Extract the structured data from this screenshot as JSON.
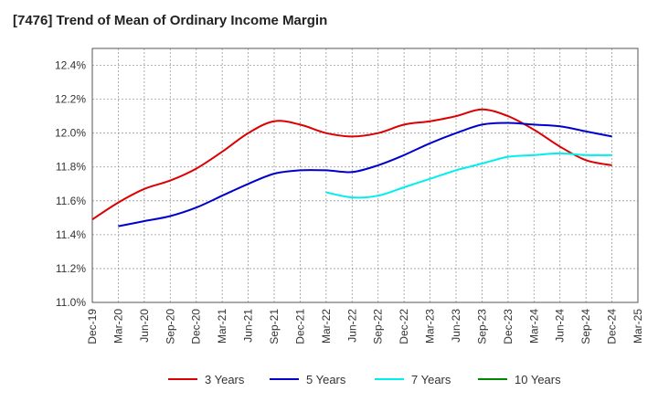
{
  "title": "[7476]  Trend of Mean of Ordinary Income Margin",
  "chart_data": {
    "type": "line",
    "title": "[7476]  Trend of Mean of Ordinary Income Margin",
    "xlabel": "",
    "ylabel": "",
    "x": [
      "Dec-19",
      "Mar-20",
      "Jun-20",
      "Sep-20",
      "Dec-20",
      "Mar-21",
      "Jun-21",
      "Sep-21",
      "Dec-21",
      "Mar-22",
      "Jun-22",
      "Sep-22",
      "Dec-22",
      "Mar-23",
      "Jun-23",
      "Sep-23",
      "Dec-23",
      "Mar-24",
      "Jun-24",
      "Sep-24",
      "Dec-24",
      "Mar-25"
    ],
    "ylim": [
      11.0,
      12.5
    ],
    "yticks": [
      11.0,
      11.2,
      11.4,
      11.6,
      11.8,
      12.0,
      12.2,
      12.4
    ],
    "ytick_labels": [
      "11.0%",
      "11.2%",
      "11.4%",
      "11.6%",
      "11.8%",
      "12.0%",
      "12.2%",
      "12.4%"
    ],
    "grid": true,
    "legend_position": "bottom",
    "series": [
      {
        "name": "3 Years",
        "color": "#dd0000",
        "values": [
          11.49,
          11.59,
          11.67,
          11.72,
          11.79,
          11.89,
          12.0,
          12.07,
          12.05,
          12.0,
          11.98,
          12.0,
          12.05,
          12.07,
          12.1,
          12.14,
          12.1,
          12.02,
          11.92,
          11.84,
          11.81,
          null
        ]
      },
      {
        "name": "5 Years",
        "color": "#0000cc",
        "values": [
          null,
          11.45,
          11.48,
          11.51,
          11.56,
          11.63,
          11.7,
          11.76,
          11.78,
          11.78,
          11.77,
          11.81,
          11.87,
          11.94,
          12.0,
          12.05,
          12.06,
          12.05,
          12.04,
          12.01,
          11.98,
          null
        ]
      },
      {
        "name": "7 Years",
        "color": "#00eeee",
        "values": [
          null,
          null,
          null,
          null,
          null,
          null,
          null,
          null,
          null,
          11.65,
          11.62,
          11.63,
          11.68,
          11.73,
          11.78,
          11.82,
          11.86,
          11.87,
          11.88,
          11.87,
          11.87,
          null
        ]
      },
      {
        "name": "10 Years",
        "color": "#008800",
        "values": [
          null,
          null,
          null,
          null,
          null,
          null,
          null,
          null,
          null,
          null,
          null,
          null,
          null,
          null,
          null,
          null,
          null,
          null,
          null,
          null,
          null,
          null
        ]
      }
    ]
  }
}
